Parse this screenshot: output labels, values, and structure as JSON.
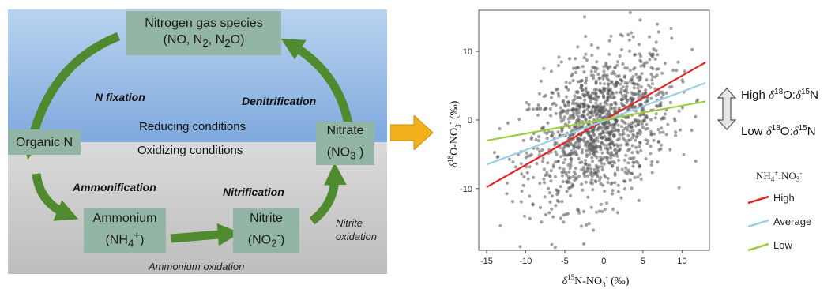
{
  "cycle": {
    "gas_box": {
      "line1": "Nitrogen gas species",
      "line2": "(NO, N",
      "sub1": "2",
      "mid": ", N",
      "sub2": "2",
      "end": "O)"
    },
    "organic_n": "Organic N",
    "nitrate": {
      "line1": "Nitrate",
      "line2_open": "(NO",
      "sub": "3",
      "sup": "-",
      "close": ")"
    },
    "ammonium": {
      "line1": "Ammonium",
      "line2_open": "(NH",
      "sub": "4",
      "sup": "+",
      "close": ")"
    },
    "nitrite": {
      "line1": "Nitrite",
      "line2_open": "(NO",
      "sub": "2",
      "sup": "-",
      "close": ")"
    },
    "processes": {
      "n_fixation": "N fixation",
      "denitrification": "Denitrification",
      "ammonification": "Ammonification",
      "nitrification": "Nitrification"
    },
    "conditions": {
      "reducing": "Reducing conditions",
      "oxidizing": "Oxidizing conditions"
    },
    "nitrite_oxidation": {
      "line1": "Nitrite",
      "line2": "oxidation"
    },
    "ammonium_oxidation": "Ammonium oxidation",
    "colors": {
      "arrow_green": "#4f8a2e",
      "arrow_orange": "#f2b01b",
      "box_fill": "#93b5a6"
    }
  },
  "chart_data": {
    "type": "scatter",
    "title": "",
    "xlabel": {
      "delta": "δ",
      "sup": "15",
      "rest": "N-NO",
      "sub": "3",
      "sup2": "-",
      "unit": " (‰)"
    },
    "ylabel": {
      "delta": "δ",
      "sup": "18",
      "rest": "O-NO",
      "sub": "3",
      "sup2": "-",
      "unit": " (‰)"
    },
    "xlim": [
      -16,
      13.5
    ],
    "ylim": [
      -19,
      16
    ],
    "xticks": [
      -15,
      -10,
      -5,
      0,
      5,
      10
    ],
    "yticks": [
      -10,
      0,
      10
    ],
    "point_color": "#555555",
    "point_count_approx": 1300,
    "point_distribution": {
      "x_center": -0.5,
      "x_sd": 4.5,
      "y_center": -1,
      "y_sd": 5.5,
      "correlation": 0.35
    },
    "series": [
      {
        "name": "High",
        "color": "#e32626",
        "x": [
          -15,
          13
        ],
        "y": [
          -9.8,
          8.4
        ]
      },
      {
        "name": "Average",
        "color": "#9ccfe4",
        "x": [
          -15,
          13
        ],
        "y": [
          -6.5,
          5.4
        ]
      },
      {
        "name": "Low",
        "color": "#9ccd3c",
        "x": [
          -15,
          13
        ],
        "y": [
          -3.0,
          2.7
        ]
      }
    ],
    "legend_title": {
      "a": "NH",
      "sub_a": "4",
      "sup_a": "+",
      "colon": ":NO",
      "sub_b": "3",
      "sup_b": "-"
    },
    "legend_placement": "right",
    "ratio_annotation": {
      "high": {
        "word": "High ",
        "d1": "δ",
        "sup1": "18",
        "mid": "O:",
        "d2": "δ",
        "sup2": "15",
        "end": "N"
      },
      "low": {
        "word": "Low ",
        "d1": "δ",
        "sup1": "18",
        "mid": "O:",
        "d2": "δ",
        "sup2": "15",
        "end": "N"
      }
    }
  },
  "connector_arrow_color": "#f2b01b"
}
